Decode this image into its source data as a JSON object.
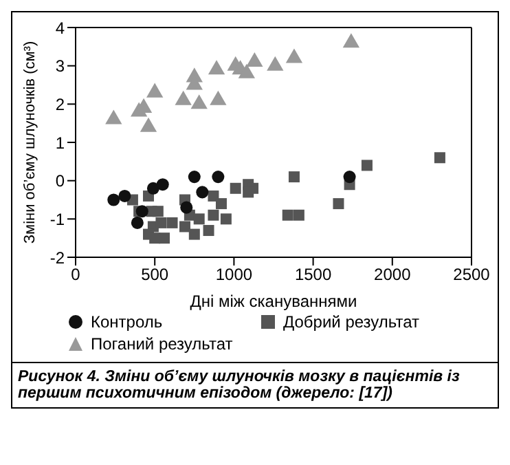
{
  "chart_data": {
    "type": "scatter",
    "xlabel": "Дні між скануваннями",
    "ylabel": "Зміни об’єму шлуночків (см³)",
    "xlim": [
      0,
      2500
    ],
    "xticks": [
      0,
      500,
      1000,
      1500,
      2000,
      2500
    ],
    "ylim": [
      -2,
      4
    ],
    "yticks": [
      -2,
      -1,
      0,
      1,
      2,
      3,
      4
    ],
    "legend": "bottom",
    "series": [
      {
        "name": "Контроль",
        "color": "#111111",
        "marker": "circle",
        "x": [
          240,
          310,
          390,
          420,
          490,
          550,
          700,
          750,
          800,
          900,
          1730
        ],
        "values": [
          -0.5,
          -0.4,
          -1.1,
          -0.8,
          -0.2,
          -0.1,
          -0.7,
          0.1,
          -0.3,
          0.1,
          0.1
        ]
      },
      {
        "name": "Добрий результат",
        "color": "#555555",
        "marker": "square",
        "x": [
          360,
          400,
          460,
          480,
          520,
          490,
          460,
          500,
          560,
          540,
          610,
          690,
          720,
          690,
          750,
          780,
          840,
          870,
          870,
          920,
          950,
          1010,
          1090,
          1120,
          1090,
          1340,
          1380,
          1410,
          1660,
          1730,
          1840,
          2300
        ],
        "values": [
          -0.5,
          -0.8,
          -0.4,
          -0.8,
          -0.8,
          -1.2,
          -1.4,
          -1.5,
          -1.5,
          -1.1,
          -1.1,
          -0.5,
          -0.9,
          -1.2,
          -1.4,
          -1.0,
          -1.3,
          -0.9,
          -0.4,
          -0.6,
          -1.0,
          -0.2,
          -0.1,
          -0.2,
          -0.3,
          -0.9,
          0.1,
          -0.9,
          -0.6,
          -0.1,
          0.4,
          0.6
        ]
      },
      {
        "name": "Поганий результат",
        "color": "#999999",
        "marker": "triangle",
        "x": [
          240,
          400,
          430,
          460,
          500,
          680,
          750,
          750,
          780,
          890,
          900,
          1010,
          1040,
          1080,
          1130,
          1260,
          1380,
          1740
        ],
        "values": [
          1.6,
          1.8,
          1.9,
          1.4,
          2.3,
          2.1,
          2.7,
          2.5,
          2.0,
          2.9,
          2.1,
          3.0,
          2.9,
          2.8,
          3.1,
          3.0,
          3.2,
          3.6
        ]
      }
    ],
    "annotations": [
      "Рисунок 4. Зміни об’єму шлуночків мозку в пацієнтів із першим психотичним епізодом (джерело: [17])"
    ]
  }
}
